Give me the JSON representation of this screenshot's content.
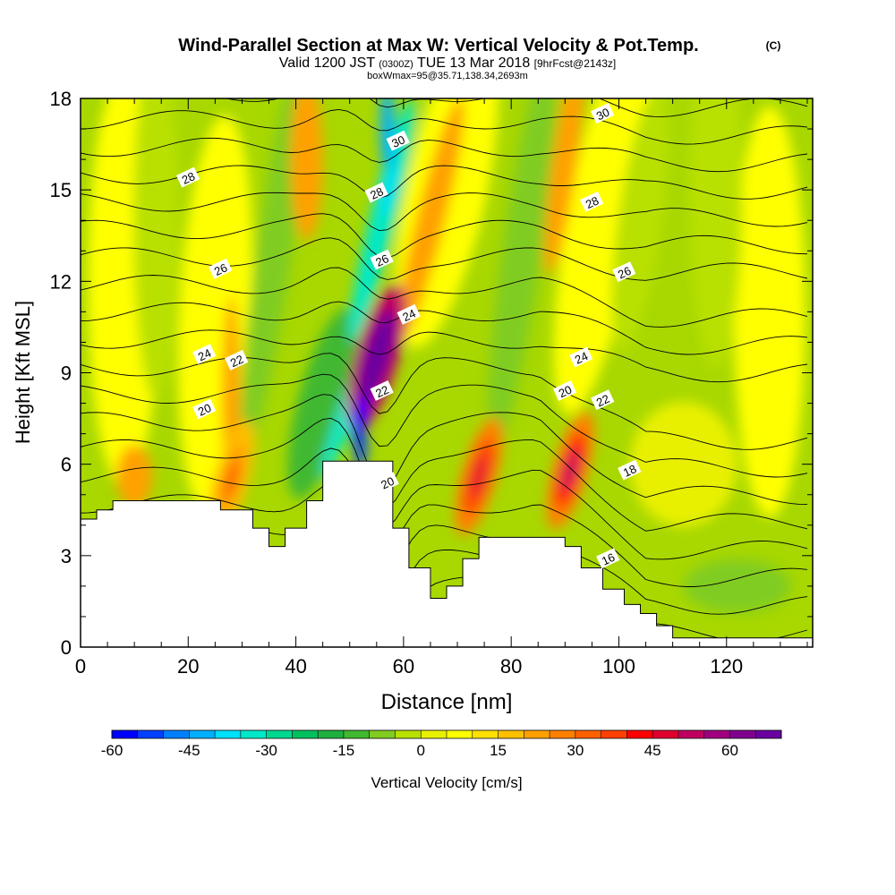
{
  "header": {
    "title": "Wind-Parallel Section at Max W: Vertical Velocity & Pot.Temp.",
    "copyright": "(C)",
    "valid_main": "Valid 1200 JST",
    "valid_utc": "(0300Z)",
    "valid_date": "TUE 13 Mar 2018",
    "valid_fcst": "[9hrFcst@2143z]",
    "box_info": "boxWmax=95@35.71,138.34,2693m"
  },
  "chart_data": {
    "type": "heatmap",
    "xlabel": "Distance [nm]",
    "ylabel": "Height [Kft MSL]",
    "xlim": [
      0,
      136
    ],
    "ylim": [
      0,
      18
    ],
    "x_ticks": [
      0,
      20,
      40,
      60,
      80,
      100,
      120
    ],
    "y_ticks": [
      0,
      3,
      6,
      9,
      12,
      15,
      18
    ],
    "colorbar": {
      "label": "Vertical Velocity [cm/s]",
      "range": [
        -60,
        70
      ],
      "tick_labels": [
        -60,
        -45,
        -30,
        -15,
        0,
        15,
        30,
        45,
        60
      ],
      "colors": [
        "#0000ff",
        "#0040ff",
        "#0080ff",
        "#00b0ff",
        "#00e0ff",
        "#00e8c8",
        "#00d890",
        "#00c060",
        "#20b040",
        "#40b830",
        "#80cc20",
        "#b8e000",
        "#e8f000",
        "#ffff00",
        "#ffe000",
        "#ffc000",
        "#ffa000",
        "#ff8000",
        "#ff6000",
        "#ff4000",
        "#ff0000",
        "#e00030",
        "#c00060",
        "#a00080",
        "#800090",
        "#6a00a0"
      ]
    },
    "updraft_cores": [
      {
        "x": 55,
        "y": 9.5,
        "w": 95
      },
      {
        "x": 74,
        "y": 5.6,
        "w": 48
      },
      {
        "x": 91,
        "y": 5.8,
        "w": 50
      },
      {
        "x": 28,
        "y": 5.5,
        "w": 30
      }
    ],
    "downdraft_cores": [
      {
        "x": 52,
        "y": 7.5,
        "w": -60
      },
      {
        "x": 57,
        "y": 15,
        "w": -40
      }
    ],
    "terrain": [
      {
        "x": 0,
        "h": 4.2
      },
      {
        "x": 3,
        "h": 4.5
      },
      {
        "x": 6,
        "h": 4.8
      },
      {
        "x": 20,
        "h": 4.8
      },
      {
        "x": 26,
        "h": 4.5
      },
      {
        "x": 32,
        "h": 3.9
      },
      {
        "x": 35,
        "h": 3.3
      },
      {
        "x": 38,
        "h": 3.9
      },
      {
        "x": 42,
        "h": 4.8
      },
      {
        "x": 45,
        "h": 6.1
      },
      {
        "x": 54,
        "h": 6.1
      },
      {
        "x": 58,
        "h": 3.9
      },
      {
        "x": 61,
        "h": 2.6
      },
      {
        "x": 65,
        "h": 1.6
      },
      {
        "x": 68,
        "h": 2.0
      },
      {
        "x": 71,
        "h": 2.9
      },
      {
        "x": 74,
        "h": 3.6
      },
      {
        "x": 87,
        "h": 3.6
      },
      {
        "x": 90,
        "h": 3.3
      },
      {
        "x": 93,
        "h": 2.6
      },
      {
        "x": 97,
        "h": 1.9
      },
      {
        "x": 101,
        "h": 1.4
      },
      {
        "x": 104,
        "h": 1.1
      },
      {
        "x": 107,
        "h": 0.7
      },
      {
        "x": 110,
        "h": 0.3
      },
      {
        "x": 136,
        "h": 0.3
      }
    ],
    "isentrope_labels": [
      {
        "text": "30",
        "x": 59,
        "y": 16.6
      },
      {
        "text": "30",
        "x": 97,
        "y": 17.5
      },
      {
        "text": "28",
        "x": 20,
        "y": 15.4
      },
      {
        "text": "28",
        "x": 55,
        "y": 14.9
      },
      {
        "text": "28",
        "x": 95,
        "y": 14.6
      },
      {
        "text": "26",
        "x": 26,
        "y": 12.4
      },
      {
        "text": "26",
        "x": 56,
        "y": 12.7
      },
      {
        "text": "26",
        "x": 101,
        "y": 12.3
      },
      {
        "text": "24",
        "x": 23,
        "y": 9.6
      },
      {
        "text": "24",
        "x": 61,
        "y": 10.9
      },
      {
        "text": "24",
        "x": 93,
        "y": 9.5
      },
      {
        "text": "22",
        "x": 29,
        "y": 9.4
      },
      {
        "text": "22",
        "x": 56,
        "y": 8.4
      },
      {
        "text": "22",
        "x": 97,
        "y": 8.1
      },
      {
        "text": "20",
        "x": 23,
        "y": 7.8
      },
      {
        "text": "20",
        "x": 90,
        "y": 8.4
      },
      {
        "text": "20",
        "x": 57,
        "y": 5.4
      },
      {
        "text": "18",
        "x": 102,
        "y": 5.8
      },
      {
        "text": "16",
        "x": 98,
        "y": 2.9
      }
    ]
  }
}
